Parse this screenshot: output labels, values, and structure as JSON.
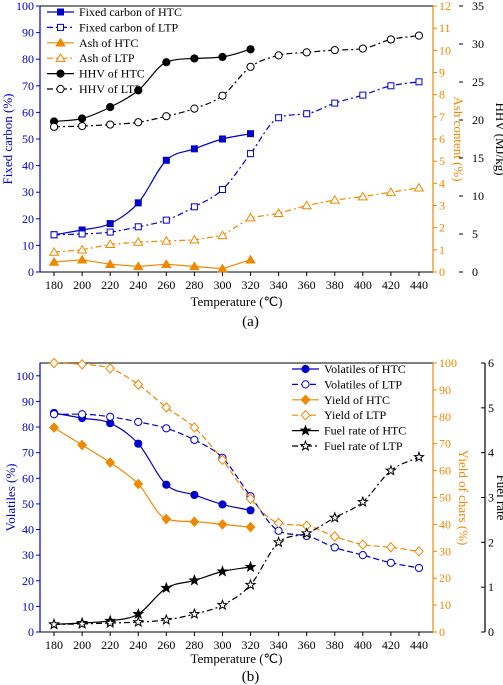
{
  "panels": [
    {
      "label": "(a)",
      "xlabel": "Temperature (℃)",
      "y1label": "Fixed carbon (%)",
      "y2label": "Ash content (%)",
      "y3label": "HHV (MJ/kg)",
      "colors": {
        "left": "#0000cc",
        "right": "#ee8800",
        "right2": "#000000"
      }
    },
    {
      "label": "(b)",
      "xlabel": "Temperature (℃)",
      "y1label": "Volatiles (%)",
      "y2label": "Yield of chars (%)",
      "y3label": "Fuel rate",
      "colors": {
        "left": "#0000cc",
        "right": "#ee8800",
        "right2": "#000000"
      }
    }
  ],
  "chart_data": [
    {
      "type": "line",
      "xlim": [
        170,
        450
      ],
      "x_ticks": [
        180,
        200,
        220,
        240,
        260,
        280,
        300,
        320,
        340,
        360,
        380,
        400,
        420,
        440
      ],
      "y_left": {
        "ylim": [
          0,
          100
        ],
        "ticks": [
          0,
          10,
          20,
          30,
          40,
          50,
          60,
          70,
          80,
          90,
          100
        ]
      },
      "y_right": {
        "ylim": [
          0,
          12
        ],
        "ticks": [
          0,
          1,
          2,
          3,
          4,
          5,
          6,
          7,
          8,
          9,
          10,
          11,
          12
        ]
      },
      "y_right2": {
        "ylim": [
          0,
          35
        ],
        "ticks": [
          0,
          5,
          10,
          15,
          20,
          25,
          30,
          35
        ]
      },
      "legend_position": "top-left",
      "series": [
        {
          "name": "Fixed carbon of HTC",
          "axis": "left",
          "color": "#0000cc",
          "dash": "",
          "marker": "square",
          "filled": true,
          "smooth": true,
          "x": [
            180,
            200,
            220,
            240,
            260,
            280,
            300,
            320
          ],
          "values": [
            14,
            15.8,
            18.2,
            26,
            42,
            46.3,
            50,
            52
          ]
        },
        {
          "name": "Fixed carbon of LTP",
          "axis": "left",
          "color": "#0000cc",
          "dash": "6,3,2,3",
          "marker": "square",
          "filled": false,
          "smooth": true,
          "x": [
            180,
            200,
            220,
            240,
            260,
            280,
            300,
            320,
            340,
            360,
            380,
            400,
            420,
            440
          ],
          "values": [
            14,
            14.3,
            15,
            17,
            19.5,
            24.5,
            31,
            44.5,
            58,
            59.5,
            63.5,
            66.5,
            70,
            71.5
          ]
        },
        {
          "name": "Ash of HTC",
          "axis": "right",
          "color": "#ee8800",
          "dash": "",
          "marker": "triangle",
          "filled": true,
          "smooth": false,
          "x": [
            180,
            200,
            220,
            240,
            260,
            280,
            300,
            320
          ],
          "values": [
            0.45,
            0.55,
            0.35,
            0.25,
            0.35,
            0.25,
            0.15,
            0.55
          ]
        },
        {
          "name": "Ash of LTP",
          "axis": "right",
          "color": "#ee8800",
          "dash": "6,3,2,3",
          "marker": "triangle",
          "filled": false,
          "smooth": false,
          "x": [
            180,
            200,
            220,
            240,
            260,
            280,
            300,
            320,
            340,
            360,
            380,
            400,
            420,
            440
          ],
          "values": [
            0.9,
            1.0,
            1.25,
            1.35,
            1.4,
            1.45,
            1.65,
            2.45,
            2.65,
            3.0,
            3.25,
            3.4,
            3.6,
            3.8
          ]
        },
        {
          "name": "HHV of  HTC",
          "axis": "right2",
          "color": "#000000",
          "dash": "",
          "marker": "circle",
          "filled": true,
          "smooth": true,
          "x": [
            180,
            200,
            220,
            240,
            260,
            280,
            300,
            320
          ],
          "values": [
            19.8,
            20.2,
            21.7,
            23.9,
            27.6,
            28.1,
            28.3,
            29.3
          ]
        },
        {
          "name": "HHV of LTP",
          "axis": "right2",
          "color": "#000000",
          "dash": "6,3,2,3",
          "marker": "circle",
          "filled": false,
          "smooth": true,
          "x": [
            180,
            200,
            220,
            240,
            260,
            280,
            300,
            320,
            340,
            360,
            380,
            400,
            420,
            440
          ],
          "values": [
            19.1,
            19.2,
            19.4,
            19.7,
            20.5,
            21.5,
            23.2,
            27.0,
            28.5,
            28.9,
            29.2,
            29.4,
            30.6,
            31.1
          ]
        }
      ]
    },
    {
      "type": "line",
      "xlim": [
        170,
        450
      ],
      "x_ticks": [
        180,
        200,
        220,
        240,
        260,
        280,
        300,
        320,
        340,
        360,
        380,
        400,
        420,
        440
      ],
      "y_left": {
        "ylim": [
          0,
          105
        ],
        "ticks": [
          0,
          10,
          20,
          30,
          40,
          50,
          60,
          70,
          80,
          90,
          100
        ]
      },
      "y_right": {
        "ylim": [
          0,
          100
        ],
        "ticks": [
          0,
          10,
          20,
          30,
          40,
          50,
          60,
          70,
          80,
          90,
          100
        ]
      },
      "y_right2": {
        "ylim": [
          0,
          6
        ],
        "ticks": [
          0,
          1,
          2,
          3,
          4,
          5,
          6
        ]
      },
      "legend_position": "top-right",
      "series": [
        {
          "name": "Volatiles of HTC",
          "axis": "left",
          "color": "#0000cc",
          "dash": "",
          "marker": "circle",
          "filled": true,
          "smooth": true,
          "x": [
            180,
            200,
            220,
            240,
            260,
            280,
            300,
            320
          ],
          "values": [
            85.5,
            83.5,
            81.5,
            73.5,
            57.5,
            53.5,
            49.8,
            47.5
          ]
        },
        {
          "name": "Volatiles of LTP",
          "axis": "left",
          "color": "#0000cc",
          "dash": "6,3",
          "marker": "circle",
          "filled": false,
          "smooth": true,
          "x": [
            180,
            200,
            220,
            240,
            260,
            280,
            300,
            320,
            340,
            360,
            380,
            400,
            420,
            440
          ],
          "values": [
            85,
            85,
            84,
            82,
            79.5,
            75,
            68,
            53,
            39.5,
            37.5,
            33,
            30,
            27,
            25
          ]
        },
        {
          "name": "Yield of HTC",
          "axis": "right",
          "color": "#ee8800",
          "dash": "",
          "marker": "diamond",
          "filled": true,
          "smooth": true,
          "x": [
            180,
            200,
            220,
            240,
            260,
            280,
            300,
            320
          ],
          "values": [
            76,
            69.5,
            63,
            55,
            42,
            41,
            40,
            39
          ]
        },
        {
          "name": "Yield of LTP",
          "axis": "right",
          "color": "#ee8800",
          "dash": "6,3",
          "marker": "diamond",
          "filled": false,
          "smooth": true,
          "x": [
            180,
            200,
            220,
            240,
            260,
            280,
            300,
            320,
            340,
            360,
            380,
            400,
            420,
            440
          ],
          "values": [
            100,
            99.5,
            98,
            92,
            83.5,
            76,
            64,
            49.5,
            40.5,
            39.5,
            35.5,
            32.5,
            31.5,
            30
          ]
        },
        {
          "name": "Fuel rate of HTC",
          "axis": "right2",
          "color": "#000000",
          "dash": "",
          "marker": "star",
          "filled": true,
          "smooth": true,
          "x": [
            180,
            200,
            220,
            240,
            260,
            280,
            300,
            320
          ],
          "values": [
            0.17,
            0.2,
            0.25,
            0.4,
            0.98,
            1.15,
            1.35,
            1.45
          ]
        },
        {
          "name": "Fuel rate of LTP",
          "axis": "right2",
          "color": "#000000",
          "dash": "6,3,2,3",
          "marker": "star",
          "filled": false,
          "smooth": true,
          "x": [
            180,
            200,
            220,
            240,
            260,
            280,
            300,
            320,
            340,
            360,
            380,
            400,
            420,
            440
          ],
          "values": [
            0.17,
            0.18,
            0.2,
            0.22,
            0.27,
            0.4,
            0.6,
            1.05,
            2.0,
            2.2,
            2.55,
            2.9,
            3.6,
            3.9
          ]
        }
      ]
    }
  ]
}
